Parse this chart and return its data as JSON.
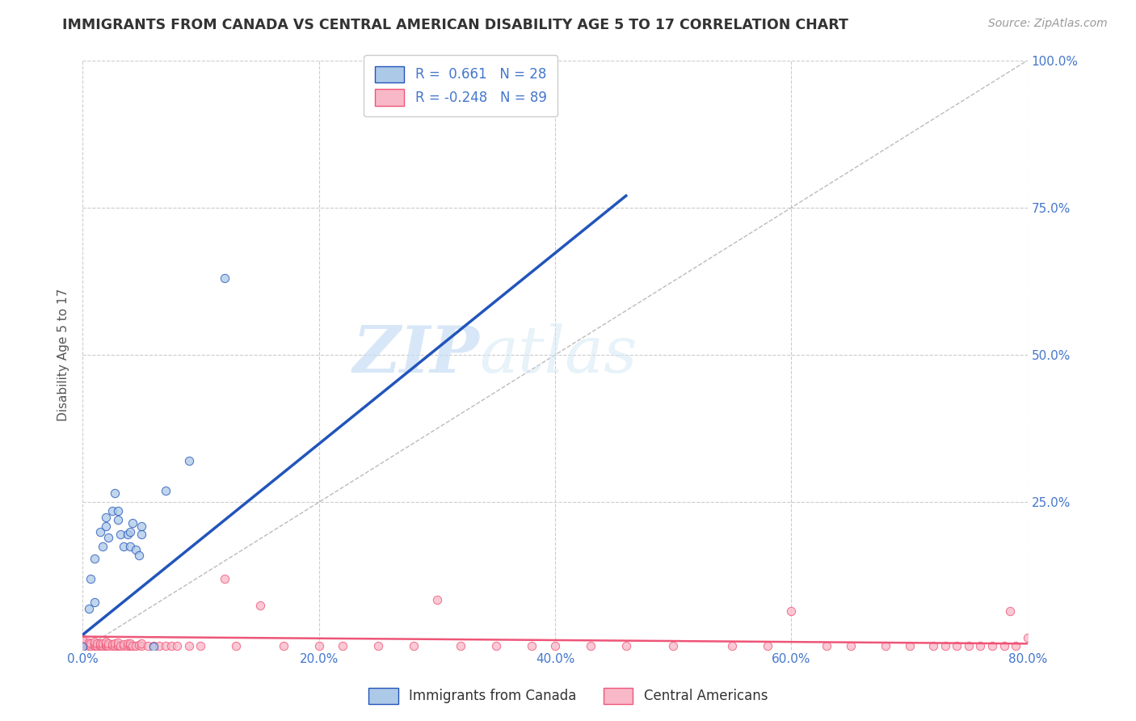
{
  "title": "IMMIGRANTS FROM CANADA VS CENTRAL AMERICAN DISABILITY AGE 5 TO 17 CORRELATION CHART",
  "source": "Source: ZipAtlas.com",
  "ylabel": "Disability Age 5 to 17",
  "xlim": [
    0.0,
    0.8
  ],
  "ylim": [
    0.0,
    1.0
  ],
  "xticks": [
    0.0,
    0.2,
    0.4,
    0.6,
    0.8
  ],
  "xticklabels": [
    "0.0%",
    "20.0%",
    "40.0%",
    "60.0%",
    "80.0%"
  ],
  "yticks": [
    0.0,
    0.25,
    0.5,
    0.75,
    1.0
  ],
  "yticklabels_right": [
    "",
    "25.0%",
    "50.0%",
    "75.0%",
    "100.0%"
  ],
  "blue_R": 0.661,
  "blue_N": 28,
  "pink_R": -0.248,
  "pink_N": 89,
  "blue_scatter_color": "#adc9e8",
  "pink_scatter_color": "#f9b8c8",
  "blue_line_color": "#2255bb",
  "pink_line_color": "#ee5577",
  "diag_color": "#bbbbbb",
  "legend_label_blue": "Immigrants from Canada",
  "legend_label_pink": "Central Americans",
  "watermark_zip": "ZIP",
  "watermark_atlas": "atlas",
  "background_color": "#ffffff",
  "grid_color": "#cccccc",
  "title_color": "#333333",
  "source_color": "#999999",
  "axis_label_color": "#555555",
  "tick_color": "#4477cc",
  "blue_points_x": [
    0.0,
    0.005,
    0.007,
    0.01,
    0.01,
    0.015,
    0.017,
    0.02,
    0.02,
    0.022,
    0.025,
    0.027,
    0.03,
    0.03,
    0.032,
    0.035,
    0.038,
    0.04,
    0.04,
    0.042,
    0.045,
    0.048,
    0.05,
    0.05,
    0.06,
    0.07,
    0.09,
    0.12
  ],
  "blue_points_y": [
    0.005,
    0.07,
    0.12,
    0.08,
    0.155,
    0.2,
    0.175,
    0.21,
    0.225,
    0.19,
    0.235,
    0.265,
    0.22,
    0.235,
    0.195,
    0.175,
    0.195,
    0.175,
    0.2,
    0.215,
    0.17,
    0.16,
    0.21,
    0.195,
    0.005,
    0.27,
    0.32,
    0.63
  ],
  "pink_points_x": [
    0.0,
    0.0,
    0.0,
    0.0,
    0.0,
    0.0,
    0.005,
    0.005,
    0.005,
    0.007,
    0.007,
    0.01,
    0.01,
    0.01,
    0.01,
    0.012,
    0.012,
    0.015,
    0.015,
    0.015,
    0.017,
    0.017,
    0.02,
    0.02,
    0.02,
    0.02,
    0.022,
    0.022,
    0.025,
    0.025,
    0.027,
    0.027,
    0.03,
    0.03,
    0.03,
    0.032,
    0.035,
    0.035,
    0.038,
    0.038,
    0.04,
    0.04,
    0.04,
    0.042,
    0.045,
    0.048,
    0.05,
    0.05,
    0.055,
    0.06,
    0.065,
    0.07,
    0.075,
    0.08,
    0.09,
    0.1,
    0.12,
    0.13,
    0.15,
    0.17,
    0.2,
    0.22,
    0.25,
    0.28,
    0.3,
    0.32,
    0.35,
    0.38,
    0.4,
    0.43,
    0.46,
    0.5,
    0.55,
    0.58,
    0.6,
    0.63,
    0.65,
    0.68,
    0.7,
    0.72,
    0.73,
    0.74,
    0.75,
    0.76,
    0.77,
    0.78,
    0.785,
    0.79,
    0.8
  ],
  "pink_points_y": [
    0.005,
    0.008,
    0.01,
    0.012,
    0.015,
    0.018,
    0.006,
    0.009,
    0.012,
    0.007,
    0.011,
    0.006,
    0.008,
    0.01,
    0.013,
    0.007,
    0.01,
    0.006,
    0.008,
    0.011,
    0.007,
    0.01,
    0.006,
    0.008,
    0.01,
    0.013,
    0.007,
    0.01,
    0.006,
    0.009,
    0.007,
    0.01,
    0.006,
    0.008,
    0.012,
    0.007,
    0.006,
    0.009,
    0.007,
    0.01,
    0.006,
    0.008,
    0.011,
    0.007,
    0.006,
    0.008,
    0.007,
    0.01,
    0.006,
    0.007,
    0.006,
    0.007,
    0.006,
    0.007,
    0.006,
    0.007,
    0.12,
    0.006,
    0.075,
    0.006,
    0.007,
    0.006,
    0.007,
    0.006,
    0.085,
    0.007,
    0.006,
    0.007,
    0.007,
    0.007,
    0.006,
    0.007,
    0.006,
    0.007,
    0.065,
    0.007,
    0.006,
    0.007,
    0.006,
    0.006,
    0.007,
    0.006,
    0.007,
    0.006,
    0.007,
    0.006,
    0.065,
    0.007,
    0.02
  ],
  "blue_line_x": [
    0.0,
    0.46
  ],
  "blue_line_y": [
    0.025,
    0.77
  ],
  "pink_line_x": [
    0.0,
    0.8
  ],
  "pink_line_y": [
    0.022,
    0.01
  ]
}
